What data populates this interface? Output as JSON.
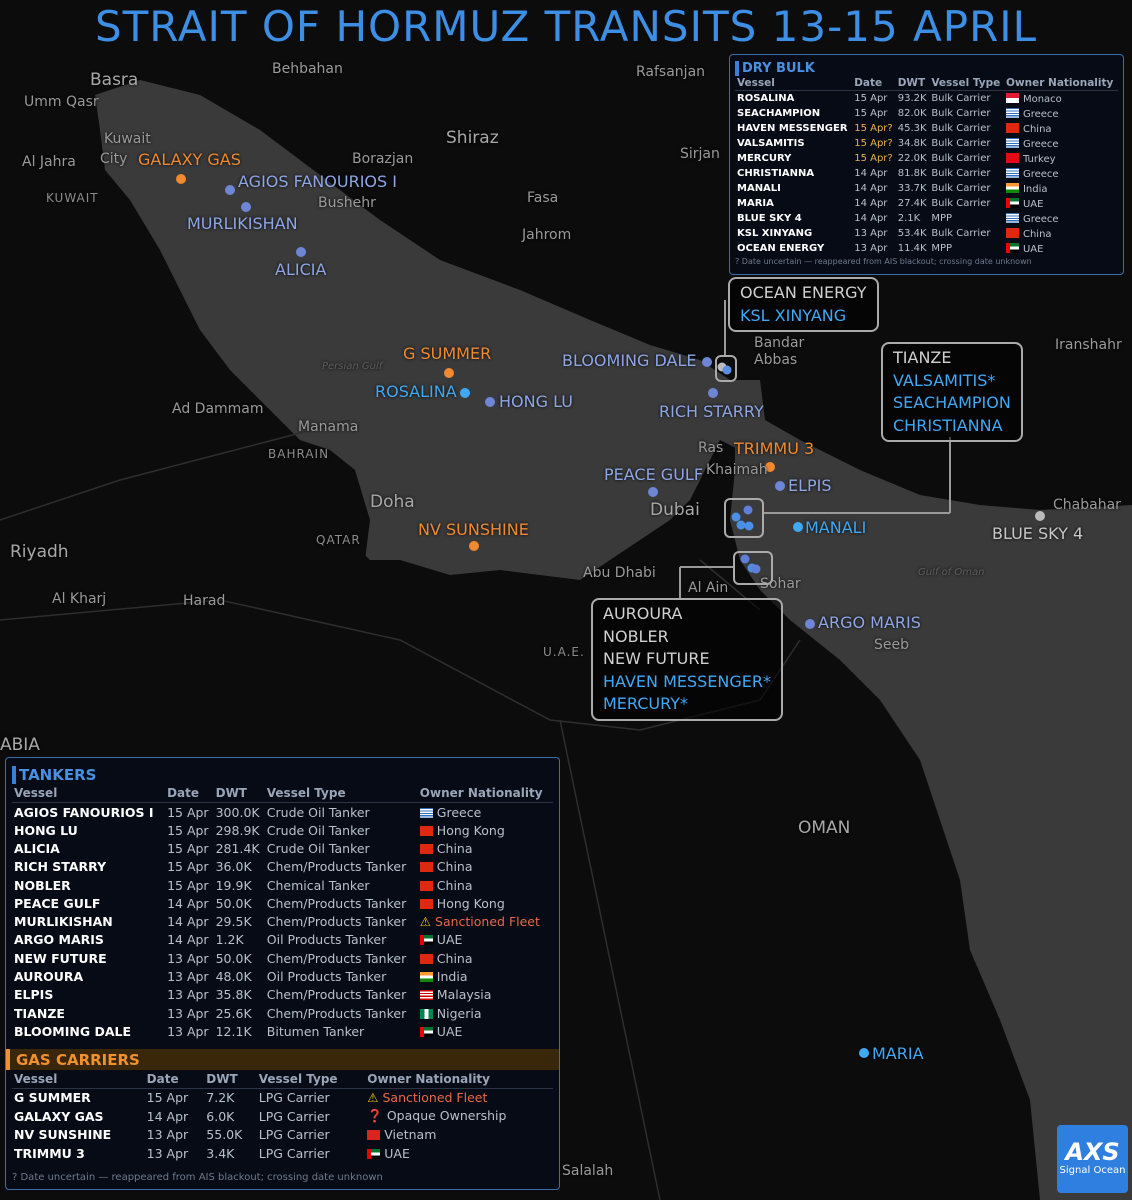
{
  "title": "STRAIT OF HORMUZ TRANSITS 13-15 APRIL",
  "colors": {
    "tanker": "#8098e0",
    "dry_bulk": "#3fa9f5",
    "gas": "#f08a30",
    "mpp": "#c8c8c8",
    "sea": "#3a3a3b",
    "land": "#0c0c0d"
  },
  "places": [
    "Basra",
    "Behbahan",
    "Umm Qasr",
    "Kuwait",
    "City",
    "Al Jahra",
    "KUWAIT",
    "Shiraz",
    "Borazjan",
    "Bushehr",
    "Fasa",
    "Jahrom",
    "Sirjan",
    "Rafsanjan",
    "Bandar",
    "Abbas",
    "Iranshahr",
    "Persian Gulf",
    "Ad Dammam",
    "Manama",
    "BAHRAIN",
    "Doha",
    "QATAR",
    "Riyadh",
    "Al Kharj",
    "Harad",
    "Ras",
    "Khaimah",
    "Dubai",
    "Abu Dhabi",
    "Al Ain",
    "Sohar",
    "U.A.E.",
    "Seeb",
    "Chabahar",
    "Gulf of Oman",
    "OMAN",
    "ABIA",
    "Salalah"
  ],
  "vessel_labels": [
    {
      "name": "GALAXY GAS",
      "cls": "gas"
    },
    {
      "name": "AGIOS FANOURIOS I",
      "cls": "tanker"
    },
    {
      "name": "MURLIKISHAN",
      "cls": "tanker"
    },
    {
      "name": "ALICIA",
      "cls": "tanker"
    },
    {
      "name": "G SUMMER",
      "cls": "gas"
    },
    {
      "name": "ROSALINA",
      "cls": "dry_bulk"
    },
    {
      "name": "HONG LU",
      "cls": "tanker"
    },
    {
      "name": "BLOOMING DALE",
      "cls": "tanker"
    },
    {
      "name": "RICH STARRY",
      "cls": "tanker"
    },
    {
      "name": "TRIMMU 3",
      "cls": "gas"
    },
    {
      "name": "PEACE GULF",
      "cls": "tanker"
    },
    {
      "name": "ELPIS",
      "cls": "tanker"
    },
    {
      "name": "MANALI",
      "cls": "dry_bulk"
    },
    {
      "name": "NV SUNSHINE",
      "cls": "gas"
    },
    {
      "name": "ARGO MARIS",
      "cls": "tanker"
    },
    {
      "name": "BLUE SKY 4",
      "cls": "mpp"
    },
    {
      "name": "MARIA",
      "cls": "dry_bulk"
    }
  ],
  "clusters": [
    {
      "items": [
        {
          "name": "OCEAN ENERGY",
          "cls": "mpp"
        },
        {
          "name": "KSL XINYANG",
          "cls": "dry_bulk"
        }
      ]
    },
    {
      "items": [
        {
          "name": "TIANZE",
          "cls": "mpp"
        },
        {
          "name": "VALSAMITIS*",
          "cls": "dry_bulk"
        },
        {
          "name": "SEACHAMPION",
          "cls": "dry_bulk"
        },
        {
          "name": "CHRISTIANNA",
          "cls": "dry_bulk"
        }
      ]
    },
    {
      "items": [
        {
          "name": "AUROURA",
          "cls": "mpp"
        },
        {
          "name": "NOBLER",
          "cls": "mpp"
        },
        {
          "name": "NEW FUTURE",
          "cls": "mpp"
        },
        {
          "name": "HAVEN MESSENGER*",
          "cls": "dry_bulk"
        },
        {
          "name": "MERCURY*",
          "cls": "dry_bulk"
        }
      ]
    }
  ],
  "dry_bulk": {
    "title": "DRY BULK",
    "columns": [
      "Vessel",
      "Date",
      "DWT",
      "Vessel Type",
      "Owner Nationality"
    ],
    "rows": [
      [
        "ROSALINA",
        "15 Apr",
        "93.2K",
        "Bulk Carrier",
        "Monaco",
        "mc"
      ],
      [
        "SEACHAMPION",
        "15 Apr",
        "82.0K",
        "Bulk Carrier",
        "Greece",
        "gr"
      ],
      [
        "HAVEN MESSENGER",
        "15 Apr?",
        "45.3K",
        "Bulk Carrier",
        "China",
        "cn"
      ],
      [
        "VALSAMITIS",
        "15 Apr?",
        "34.8K",
        "Bulk Carrier",
        "Greece",
        "gr"
      ],
      [
        "MERCURY",
        "15 Apr?",
        "22.0K",
        "Bulk Carrier",
        "Turkey",
        "tr"
      ],
      [
        "CHRISTIANNA",
        "14 Apr",
        "81.8K",
        "Bulk Carrier",
        "Greece",
        "gr"
      ],
      [
        "MANALI",
        "14 Apr",
        "33.7K",
        "Bulk Carrier",
        "India",
        "in"
      ],
      [
        "MARIA",
        "14 Apr",
        "27.4K",
        "Bulk Carrier",
        "UAE",
        "ae"
      ],
      [
        "BLUE SKY 4",
        "14 Apr",
        "2.1K",
        "MPP",
        "Greece",
        "gr"
      ],
      [
        "KSL XINYANG",
        "13 Apr",
        "53.4K",
        "Bulk Carrier",
        "China",
        "cn"
      ],
      [
        "OCEAN ENERGY",
        "13 Apr",
        "11.4K",
        "MPP",
        "UAE",
        "ae"
      ]
    ],
    "note": "? Date uncertain — reappeared from AIS blackout; crossing date unknown"
  },
  "tankers": {
    "title": "TANKERS",
    "columns": [
      "Vessel",
      "Date",
      "DWT",
      "Vessel Type",
      "Owner Nationality"
    ],
    "rows": [
      [
        "AGIOS FANOURIOS I",
        "15 Apr",
        "300.0K",
        "Crude Oil Tanker",
        "Greece",
        "gr"
      ],
      [
        "HONG LU",
        "15 Apr",
        "298.9K",
        "Crude Oil Tanker",
        "Hong Kong",
        "hk"
      ],
      [
        "ALICIA",
        "15 Apr",
        "281.4K",
        "Crude Oil Tanker",
        "China",
        "cn"
      ],
      [
        "RICH STARRY",
        "15 Apr",
        "36.0K",
        "Chem/Products Tanker",
        "China",
        "cn"
      ],
      [
        "NOBLER",
        "15 Apr",
        "19.9K",
        "Chemical Tanker",
        "China",
        "cn"
      ],
      [
        "PEACE GULF",
        "14 Apr",
        "50.0K",
        "Chem/Products Tanker",
        "Hong Kong",
        "hk"
      ],
      [
        "MURLIKISHAN",
        "14 Apr",
        "29.5K",
        "Chem/Products Tanker",
        "Sanctioned Fleet",
        "warn"
      ],
      [
        "ARGO MARIS",
        "14 Apr",
        "1.2K",
        "Oil Products Tanker",
        "UAE",
        "ae"
      ],
      [
        "NEW FUTURE",
        "13 Apr",
        "50.0K",
        "Chem/Products Tanker",
        "China",
        "cn"
      ],
      [
        "AUROURA",
        "13 Apr",
        "48.0K",
        "Oil Products Tanker",
        "India",
        "in"
      ],
      [
        "ELPIS",
        "13 Apr",
        "35.8K",
        "Chem/Products Tanker",
        "Malaysia",
        "my"
      ],
      [
        "TIANZE",
        "13 Apr",
        "25.6K",
        "Chem/Products Tanker",
        "Nigeria",
        "ng"
      ],
      [
        "BLOOMING DALE",
        "13 Apr",
        "12.1K",
        "Bitumen Tanker",
        "UAE",
        "ae"
      ]
    ]
  },
  "gas_carriers": {
    "title": "GAS CARRIERS",
    "columns": [
      "Vessel",
      "Date",
      "DWT",
      "Vessel Type",
      "Owner Nationality"
    ],
    "rows": [
      [
        "G SUMMER",
        "15 Apr",
        "7.2K",
        "LPG Carrier",
        "Sanctioned Fleet",
        "warn"
      ],
      [
        "GALAXY GAS",
        "14 Apr",
        "6.0K",
        "LPG Carrier",
        "Opaque Ownership",
        "q"
      ],
      [
        "NV SUNSHINE",
        "13 Apr",
        "55.0K",
        "LPG Carrier",
        "Vietnam",
        "vn"
      ],
      [
        "TRIMMU 3",
        "13 Apr",
        "3.4K",
        "LPG Carrier",
        "UAE",
        "ae"
      ]
    ],
    "note": "? Date uncertain — reappeared from AIS blackout; crossing date unknown"
  },
  "logo": {
    "mark": "AXS",
    "sub": "Signal Ocean"
  }
}
